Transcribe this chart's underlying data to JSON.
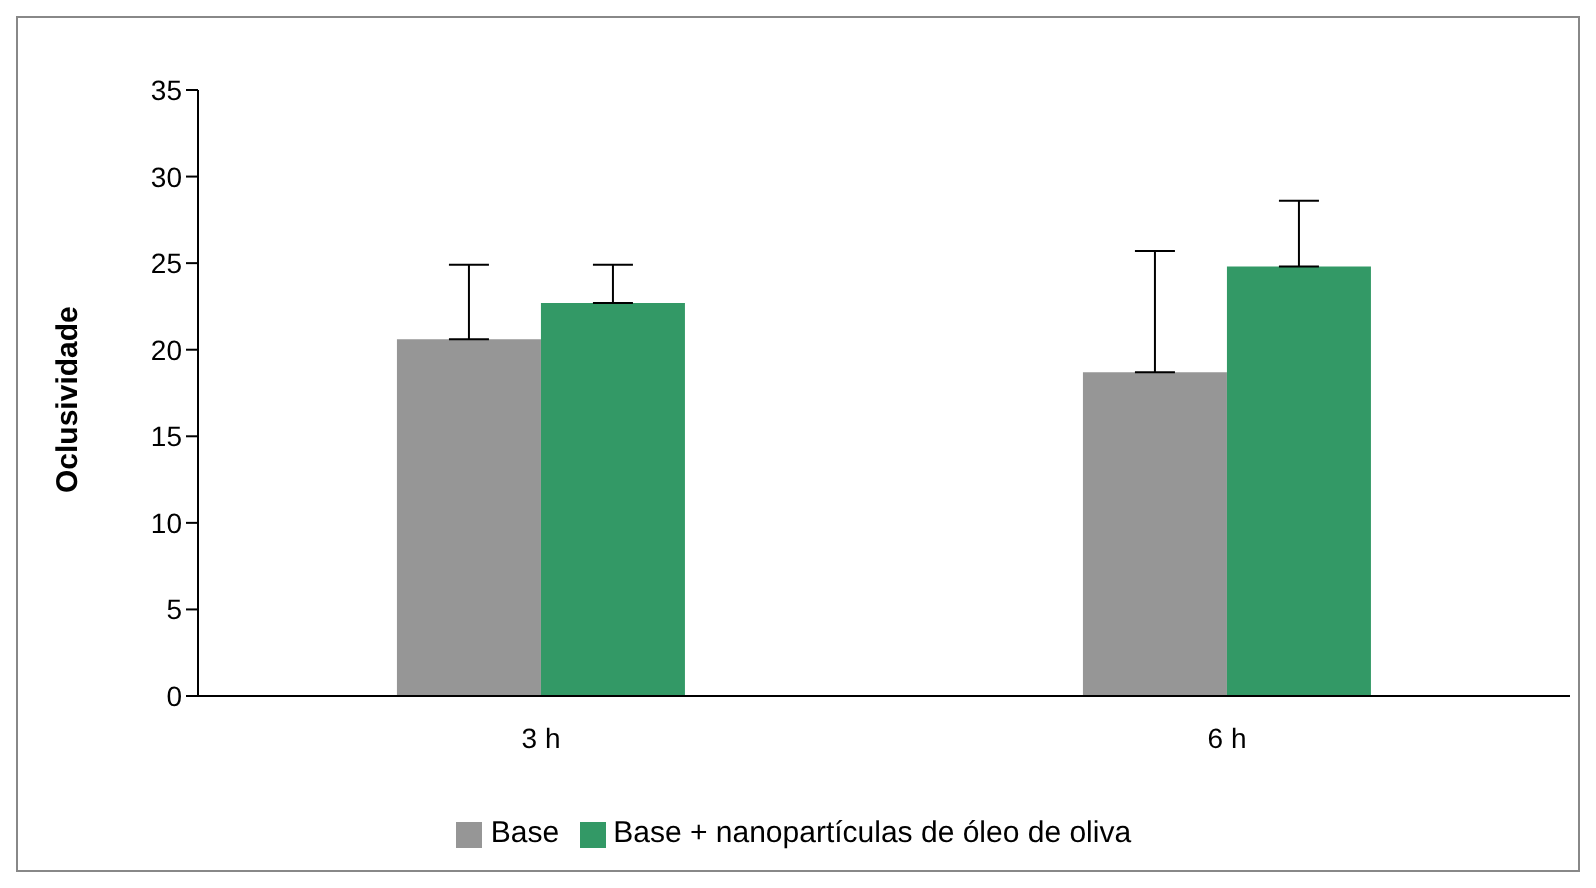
{
  "chart_data": {
    "type": "bar",
    "ylabel": "Oclusividade",
    "categories": [
      "3 h",
      "6 h"
    ],
    "series": [
      {
        "name": "Base",
        "color": "#969696",
        "values": [
          20.6,
          18.7
        ],
        "errors": [
          [
            20.6,
            24.9
          ],
          [
            18.7,
            25.7
          ]
        ]
      },
      {
        "name": "Base + nanopartículas de óleo de oliva",
        "color": "#339966",
        "values": [
          22.7,
          24.8
        ],
        "errors": [
          [
            22.7,
            24.9
          ],
          [
            24.8,
            28.6
          ]
        ]
      }
    ],
    "ylim": [
      0,
      35
    ],
    "yticks": [
      0,
      5,
      10,
      15,
      20,
      25,
      30,
      35
    ],
    "grid": false,
    "legend": "bottom"
  }
}
